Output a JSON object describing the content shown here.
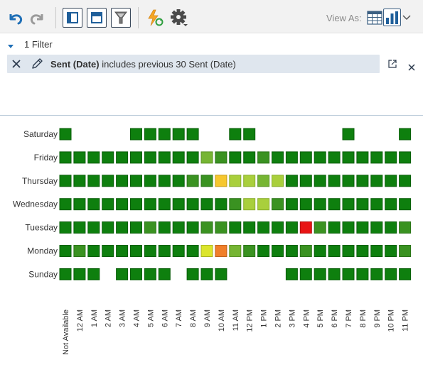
{
  "toolbar": {
    "view_as_label": "View As:",
    "icons": [
      "undo-icon",
      "redo-icon",
      "layout-panel-icon",
      "layout-header-icon",
      "filter-icon",
      "refresh-flash-icon",
      "settings-gear-icon",
      "table-view-icon",
      "chart-view-icon",
      "chevron-down-icon"
    ]
  },
  "filter_bar": {
    "count_label": "1 Filter"
  },
  "filter": {
    "field": "Sent (Date)",
    "condition": " includes previous 30 Sent (Date)"
  },
  "colors": {
    "dark_green": "#0e7f0e",
    "mid_green": "#3a9221",
    "light_green": "#76b533",
    "yellow_green": "#a9cf3c",
    "yellow": "#dbe52b",
    "amber": "#f6c72e",
    "orange": "#f07f2a",
    "red": "#e81414"
  },
  "chart_data": {
    "type": "heatmap",
    "rows": [
      "Saturday",
      "Friday",
      "Thursday",
      "Wednesday",
      "Tuesday",
      "Monday",
      "Sunday"
    ],
    "columns": [
      "Not Available",
      "12 AM",
      "1 AM",
      "2 AM",
      "3 AM",
      "4 AM",
      "5 AM",
      "6 AM",
      "7 AM",
      "8 AM",
      "9 AM",
      "10 AM",
      "11 AM",
      "12 PM",
      "1 PM",
      "2 PM",
      "3 PM",
      "4 PM",
      "5 PM",
      "6 PM",
      "7 PM",
      "8 PM",
      "9 PM",
      "10 PM",
      "11 PM"
    ],
    "color_scale": [
      "dark_green",
      "mid_green",
      "light_green",
      "yellow_green",
      "yellow",
      "amber",
      "orange",
      "red"
    ],
    "cells": [
      [
        0,
        null,
        null,
        null,
        null,
        0,
        0,
        0,
        0,
        0,
        null,
        null,
        0,
        0,
        null,
        null,
        null,
        null,
        null,
        null,
        0,
        null,
        null,
        null,
        0
      ],
      [
        0,
        0,
        0,
        0,
        0,
        0,
        0,
        0,
        0,
        0,
        2,
        1,
        0,
        0,
        1,
        0,
        0,
        0,
        0,
        0,
        0,
        0,
        0,
        0,
        0
      ],
      [
        0,
        0,
        0,
        0,
        0,
        0,
        0,
        0,
        0,
        1,
        1,
        5,
        3,
        3,
        2,
        3,
        0,
        0,
        0,
        0,
        0,
        0,
        0,
        0,
        0
      ],
      [
        0,
        0,
        0,
        0,
        0,
        0,
        0,
        0,
        0,
        0,
        0,
        0,
        1,
        3,
        3,
        1,
        0,
        0,
        0,
        0,
        0,
        0,
        0,
        0,
        0
      ],
      [
        0,
        0,
        0,
        0,
        0,
        0,
        1,
        0,
        0,
        0,
        1,
        1,
        0,
        0,
        0,
        0,
        0,
        7,
        1,
        0,
        0,
        0,
        0,
        0,
        1
      ],
      [
        0,
        1,
        0,
        0,
        0,
        0,
        0,
        0,
        0,
        0,
        4,
        6,
        2,
        1,
        0,
        0,
        0,
        1,
        0,
        0,
        0,
        0,
        0,
        0,
        1
      ],
      [
        0,
        0,
        0,
        null,
        0,
        0,
        0,
        0,
        null,
        0,
        0,
        0,
        null,
        null,
        null,
        null,
        0,
        0,
        0,
        0,
        0,
        0,
        0,
        0,
        0
      ]
    ]
  }
}
